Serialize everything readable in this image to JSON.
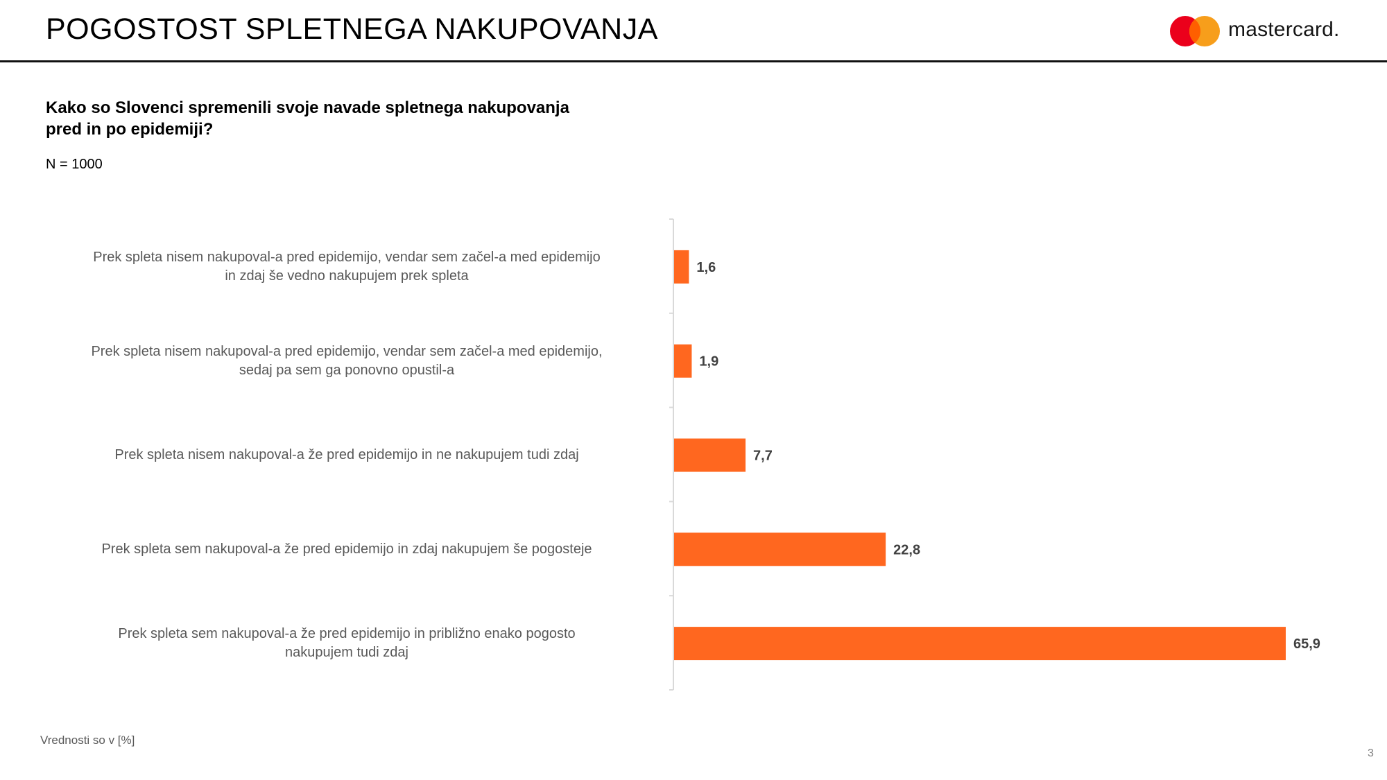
{
  "header": {
    "title": "POGOSTOST SPLETNEGA NAKUPOVANJA",
    "logo_text": "mastercard.",
    "brand_colors": {
      "red": "#EB001B",
      "yellow": "#F79E1B",
      "overlap": "#FF5F00"
    }
  },
  "question": "Kako so Slovenci spremenili svoje navade spletnega nakupovanja\npred in po epidemiji?",
  "sample_size": "N = 1000",
  "chart_data": {
    "type": "bar",
    "orientation": "horizontal",
    "bar_color": "#FF671F",
    "categories": [
      "Prek spleta nisem nakupoval-a pred epidemijo, vendar sem začel-a med epidemijo\nin zdaj še vedno nakupujem prek spleta",
      "Prek spleta nisem nakupoval-a pred epidemijo, vendar sem začel-a med epidemijo,\nsedaj pa sem ga ponovno opustil-a",
      "Prek spleta nisem nakupoval-a že pred epidemijo in ne nakupujem tudi zdaj",
      "Prek spleta sem nakupoval-a že pred epidemijo in zdaj nakupujem še pogosteje",
      "Prek spleta sem nakupoval-a že pred epidemijo in približno enako pogosto\nnakupujem tudi zdaj"
    ],
    "values": [
      1.6,
      1.9,
      7.7,
      22.8,
      65.9
    ],
    "value_labels": [
      "1,6",
      "1,9",
      "7,7",
      "22,8",
      "65,9"
    ],
    "xlim": [
      0,
      70
    ],
    "unit": "%"
  },
  "footnote": "Vrednosti so v [%]",
  "page_number": "3"
}
